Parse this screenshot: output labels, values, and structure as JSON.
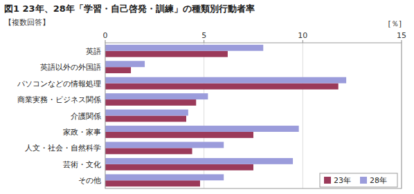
{
  "chart_data": {
    "type": "bar",
    "orientation": "horizontal",
    "title": "図1  23年、28年「学習・自己啓発・訓練」の種類別行動者率",
    "subtitle": "【複数回答】",
    "xlabel": "[％]",
    "categories": [
      "英語",
      "英語以外の外国語",
      "パソコンなどの情報処理",
      "商業実務・ビジネス関係",
      "介護関係",
      "家政・家事",
      "人文・社会・自然科学",
      "芸術・文化",
      "その他"
    ],
    "series": [
      {
        "name": "23年",
        "color": "#9b3a5a",
        "values": [
          6.2,
          1.3,
          11.8,
          4.6,
          4.1,
          7.5,
          4.4,
          7.5,
          4.8
        ]
      },
      {
        "name": "28年",
        "color": "#9b9cdb",
        "values": [
          8.0,
          2.0,
          12.2,
          5.2,
          4.2,
          9.8,
          6.0,
          9.5,
          6.0
        ]
      }
    ],
    "xlim": [
      0,
      15
    ],
    "xticks": [
      0,
      5,
      10,
      15
    ],
    "grid": true,
    "legend": "lower right"
  }
}
